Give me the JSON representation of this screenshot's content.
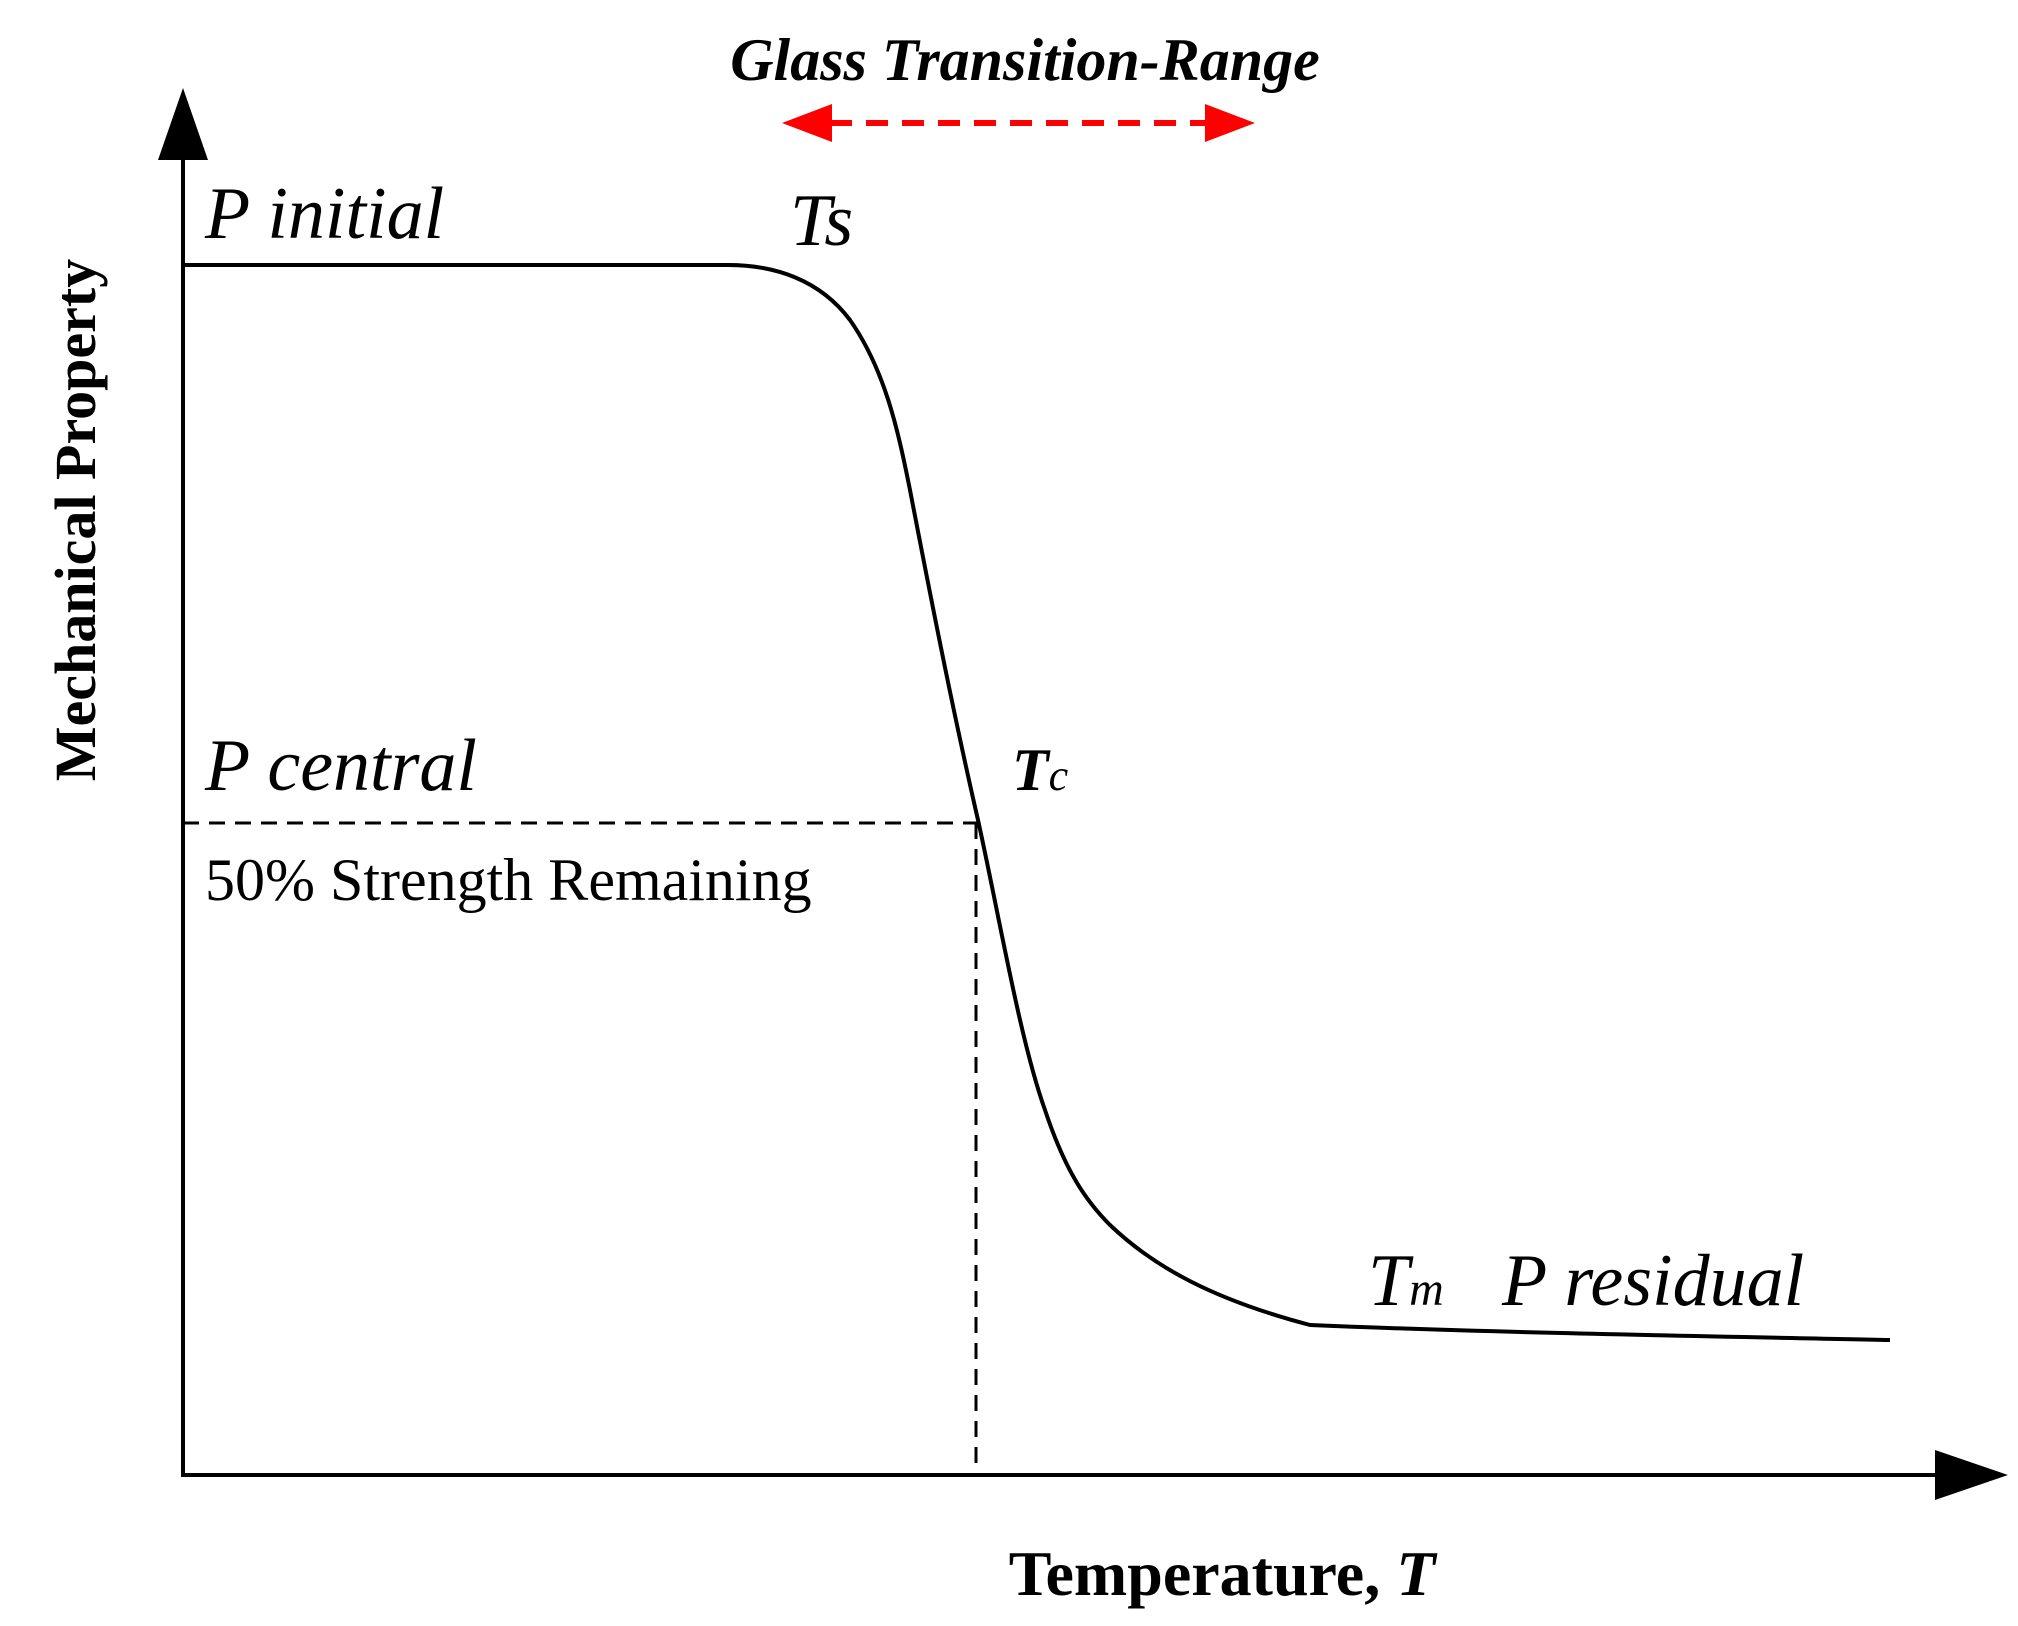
{
  "title": "Glass Transition-Range",
  "axes": {
    "y_label": "Mechanical Property",
    "x_label_main": "Temperature, ",
    "x_label_symbol": "T"
  },
  "labels": {
    "p_initial": "P initial",
    "p_central": "P central",
    "p_residual": "P residual",
    "strength_note": "50% Strength Remaining",
    "ts_main": "T",
    "ts_sub": "s",
    "tc_main": "T",
    "tc_sub": "c",
    "tm_main": "T",
    "tm_sub": "m"
  },
  "colors": {
    "ink": "#000000",
    "range_arrow": "#ff0000",
    "background": "#ffffff"
  }
}
